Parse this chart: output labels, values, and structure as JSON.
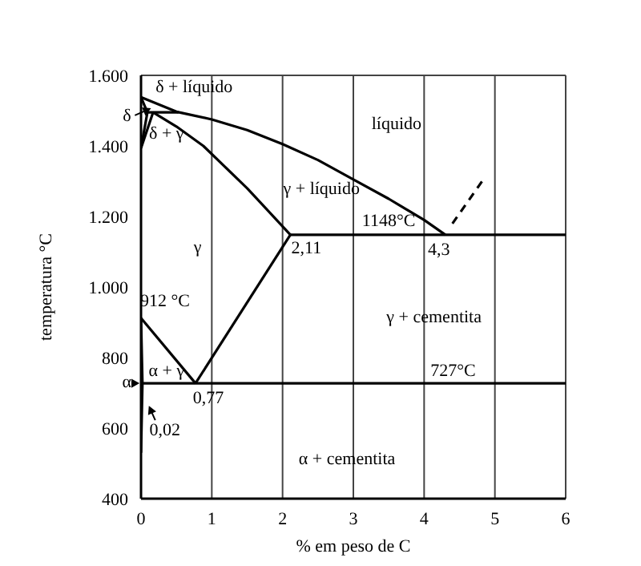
{
  "chart_data": {
    "type": "line",
    "xlabel": "% em peso de C",
    "ylabel": "temperatura °C",
    "xlim": [
      0,
      6
    ],
    "xticks": [
      0,
      1,
      2,
      3,
      4,
      5,
      6
    ],
    "ylim": [
      400,
      1600
    ],
    "yticks": [
      400,
      600,
      800,
      {
        "value": 1000,
        "label": "1.000"
      },
      {
        "value": 1200,
        "label": "1.200"
      },
      {
        "value": 1400,
        "label": "1.400"
      },
      {
        "value": 1600,
        "label": "1.600"
      }
    ],
    "grid": true,
    "line_style": "solid",
    "series": [
      {
        "color": "#000000",
        "x": [
          0,
          0.5,
          1,
          1.5,
          2,
          2.5,
          3,
          3.5,
          4,
          4.3
        ],
        "values": [
          1538,
          1497,
          1475,
          1445,
          1405,
          1360,
          1305,
          1250,
          1190,
          1148
        ]
      },
      {
        "color": "#000000",
        "x": [
          0.17,
          0.5,
          0.88,
          1.5,
          2.11
        ],
        "values": [
          1495,
          1455,
          1400,
          1280,
          1148
        ]
      },
      {
        "color": "#000000",
        "x": [
          2.11,
          6
        ],
        "values": [
          1148,
          1148
        ]
      },
      {
        "color": "#000000",
        "x": [
          2.11,
          0.77
        ],
        "values": [
          1148,
          727
        ]
      },
      {
        "color": "#000000",
        "x": [
          0,
          0.77
        ],
        "values": [
          912,
          727
        ]
      },
      {
        "color": "#000000",
        "x": [
          0.02,
          6
        ],
        "values": [
          727,
          727
        ]
      },
      {
        "color": "#000000",
        "x": [
          0,
          0.02,
          0
        ],
        "values": [
          912,
          727,
          530
        ]
      },
      {
        "color": "#000000",
        "x": [
          0,
          0.09,
          0
        ],
        "values": [
          1538,
          1495,
          1394
        ]
      },
      {
        "color": "#000000",
        "x": [
          0.09,
          0.53
        ],
        "values": [
          1495,
          1495
        ]
      },
      {
        "color": "#000000",
        "x": [
          0,
          0.17
        ],
        "values": [
          1394,
          1495
        ]
      },
      {
        "color": "#000000",
        "x": [
          4.4,
          4.82
        ],
        "values": [
          1180,
          1300
        ],
        "line_style": "dashed"
      }
    ],
    "annotations": [
      "δ + líquido",
      "δ",
      "δ + γ",
      "líquido",
      "γ + líquido",
      "γ",
      {
        "text": "1148°C",
        "y": 1148
      },
      {
        "text": "2,11",
        "x": 2.11,
        "y": 1148
      },
      {
        "text": "4,3",
        "x": 4.3,
        "y": 1148
      },
      {
        "text": "912 °C",
        "x": 0,
        "y": 912
      },
      "γ + cementita",
      "α + γ",
      "α",
      {
        "text": "0,77",
        "x": 0.77,
        "y": 727
      },
      {
        "text": "727°C",
        "y": 727
      },
      {
        "text": "0,02",
        "x": 0.02,
        "y": 727
      },
      "α + cementita"
    ]
  }
}
